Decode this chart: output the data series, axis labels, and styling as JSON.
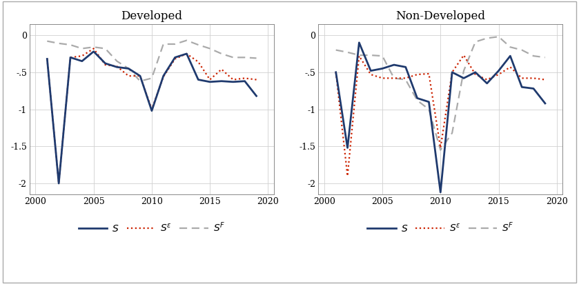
{
  "title_left": "Developed",
  "title_right": "Non-Developed",
  "ylim": [
    -2.15,
    0.15
  ],
  "xlim": [
    1999.5,
    2020.5
  ],
  "yticks": [
    0,
    -0.5,
    -1,
    -1.5,
    -2
  ],
  "ytick_labels": [
    "0",
    "-.5",
    "-1",
    "-1.5",
    "-2"
  ],
  "xticks": [
    2000,
    2005,
    2010,
    2015,
    2020
  ],
  "color_S": "#1f3a6e",
  "color_Se": "#cc2200",
  "color_Sf": "#aaaaaa",
  "lw_S": 2.0,
  "lw_Se": 1.6,
  "lw_Sf": 1.6,
  "developed": {
    "years": [
      2001,
      2002,
      2003,
      2004,
      2005,
      2006,
      2007,
      2008,
      2009,
      2010,
      2011,
      2012,
      2013,
      2014,
      2015,
      2016,
      2017,
      2018,
      2019
    ],
    "S": [
      -0.32,
      -2.0,
      -0.3,
      -0.35,
      -0.22,
      -0.38,
      -0.43,
      -0.45,
      -0.55,
      -1.02,
      -0.55,
      -0.3,
      -0.25,
      -0.6,
      -0.63,
      -0.62,
      -0.63,
      -0.62,
      -0.82
    ],
    "Se": [
      -0.32,
      -2.0,
      -0.3,
      -0.28,
      -0.18,
      -0.4,
      -0.42,
      -0.55,
      -0.55,
      -1.0,
      -0.56,
      -0.32,
      -0.25,
      -0.36,
      -0.6,
      -0.46,
      -0.6,
      -0.58,
      -0.6
    ],
    "Sf": [
      -0.08,
      -0.11,
      -0.13,
      -0.18,
      -0.16,
      -0.18,
      -0.35,
      -0.45,
      -0.62,
      -0.58,
      -0.12,
      -0.12,
      -0.07,
      -0.13,
      -0.18,
      -0.25,
      -0.3,
      -0.3,
      -0.31
    ]
  },
  "nondeveloped": {
    "years": [
      2001,
      2002,
      2003,
      2004,
      2005,
      2006,
      2007,
      2008,
      2009,
      2010,
      2011,
      2012,
      2013,
      2014,
      2015,
      2016,
      2017,
      2018,
      2019
    ],
    "S": [
      -0.5,
      -1.52,
      -0.1,
      -0.48,
      -0.45,
      -0.4,
      -0.43,
      -0.85,
      -0.9,
      -2.12,
      -0.5,
      -0.58,
      -0.5,
      -0.65,
      -0.48,
      -0.28,
      -0.7,
      -0.72,
      -0.92
    ],
    "Se": [
      -0.5,
      -1.9,
      -0.28,
      -0.53,
      -0.58,
      -0.58,
      -0.58,
      -0.53,
      -0.52,
      -1.52,
      -0.5,
      -0.27,
      -0.53,
      -0.6,
      -0.53,
      -0.43,
      -0.58,
      -0.58,
      -0.6
    ],
    "Sf": [
      -0.2,
      -0.23,
      -0.27,
      -0.27,
      -0.28,
      -0.58,
      -0.6,
      -0.88,
      -1.0,
      -1.55,
      -1.32,
      -0.48,
      -0.09,
      -0.04,
      -0.02,
      -0.16,
      -0.2,
      -0.28,
      -0.3
    ]
  }
}
